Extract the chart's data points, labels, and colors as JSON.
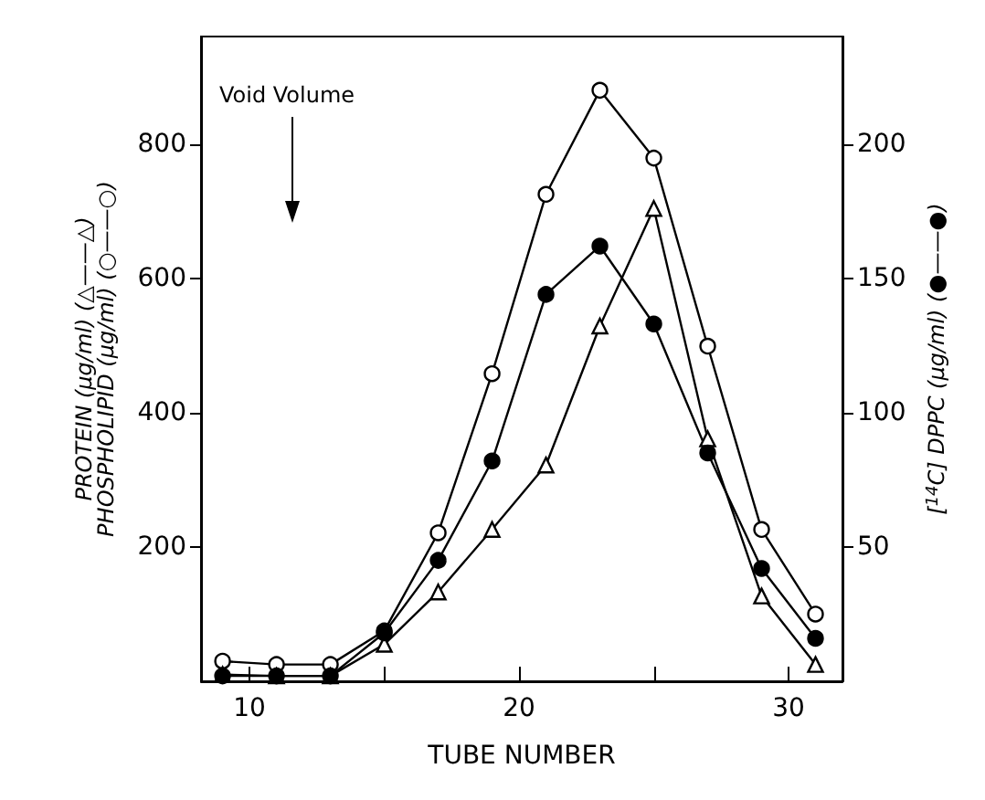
{
  "chart_data": {
    "type": "line",
    "xlabel": "TUBE NUMBER",
    "ylabel": "PROTEIN (μg/ml) (△——△)\nPHOSPHOLIPID (μg/ml) (○——○)",
    "y2label": "[$^{14}$C] DPPC (μg/ml) (●——●)",
    "x": [
      9,
      11,
      13,
      15,
      17,
      19,
      21,
      23,
      25,
      27,
      29,
      31
    ],
    "series": [
      {
        "color": "#000000",
        "marker": "circle",
        "values": [
          30,
          25,
          25,
          75,
          221,
          458,
          725,
          880,
          779,
          499,
          226,
          100
        ]
      },
      {
        "color": "#000000",
        "marker": "triangle",
        "values": [
          10,
          8,
          8,
          55,
          133,
          226,
          322,
          529,
          704,
          361,
          127,
          25
        ]
      },
      {
        "color": "#000000",
        "marker": "circle",
        "axis": "y2",
        "values": [
          2,
          2,
          2,
          18,
          45,
          82,
          144,
          162,
          133,
          85,
          42,
          16
        ]
      }
    ],
    "xlim": [
      8.2,
      32
    ],
    "xticks": [
      10,
      {
        "value": 15,
        "label": null
      },
      20,
      {
        "value": 25,
        "label": null
      },
      30
    ],
    "ylim": [
      0,
      960
    ],
    "yticks": [
      200,
      400,
      600,
      800
    ],
    "y2lim": [
      0,
      240
    ],
    "y2ticks": [
      50,
      100,
      150,
      200
    ],
    "annotations": [
      "Void Volume"
    ],
    "line_style": "solid"
  }
}
